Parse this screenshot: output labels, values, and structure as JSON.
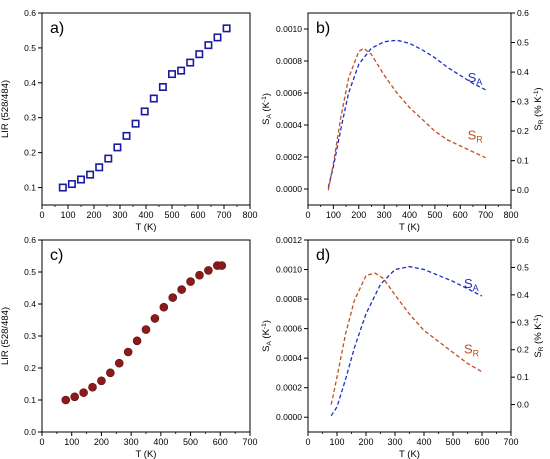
{
  "figure": {
    "colors": {
      "axis": "#000000",
      "blue": "#1f2fbf",
      "orange": "#c0501f",
      "marker_red": "#8b1a1a",
      "marker_blue": "#1a1aa0"
    }
  },
  "chart_data": [
    {
      "id": "a",
      "type": "scatter",
      "panel_label": "a)",
      "xlabel": "T (K)",
      "ylabel": "LIR (528/484)",
      "xlim": [
        0,
        800
      ],
      "ylim": [
        0.05,
        0.6
      ],
      "xticks": [
        "0",
        "100",
        "200",
        "300",
        "400",
        "500",
        "600",
        "700",
        "800"
      ],
      "yticks": [
        "0.1",
        "0.2",
        "0.3",
        "0.4",
        "0.5",
        "0.6"
      ],
      "marker": "hollow-square",
      "color": "#1a1aa0",
      "x": [
        80,
        115,
        150,
        185,
        220,
        255,
        290,
        325,
        360,
        395,
        430,
        465,
        500,
        535,
        570,
        605,
        640,
        675,
        710
      ],
      "y": [
        0.1,
        0.11,
        0.123,
        0.137,
        0.158,
        0.183,
        0.215,
        0.248,
        0.283,
        0.318,
        0.355,
        0.388,
        0.425,
        0.435,
        0.458,
        0.482,
        0.508,
        0.53,
        0.556
      ]
    },
    {
      "id": "b",
      "type": "line",
      "panel_label": "b)",
      "xlabel": "T (K)",
      "ylabel_left": "SA (K-1)",
      "ylabel_right": "SR (% K-1)",
      "xlim": [
        0,
        800
      ],
      "ylim_left": [
        -0.0001,
        0.0011
      ],
      "ylim_right": [
        -0.05,
        0.6
      ],
      "xticks": [
        "0",
        "100",
        "200",
        "300",
        "400",
        "500",
        "600",
        "700",
        "800"
      ],
      "yticks_left": [
        "0.0000",
        "0.0002",
        "0.0004",
        "0.0006",
        "0.0008",
        "0.0010"
      ],
      "yticks_right": [
        "0.0",
        "0.1",
        "0.2",
        "0.3",
        "0.4",
        "0.5",
        "0.6"
      ],
      "series": [
        {
          "name": "SA",
          "axis": "left",
          "color": "#1f2fbf",
          "x": [
            80,
            100,
            130,
            160,
            200,
            250,
            300,
            350,
            400,
            450,
            500,
            550,
            600,
            650,
            700
          ],
          "y": [
            1e-05,
            0.00014,
            0.00038,
            0.0006,
            0.00078,
            0.00088,
            0.00092,
            0.00093,
            0.00091,
            0.00087,
            0.00082,
            0.00076,
            0.00071,
            0.00066,
            0.00062
          ]
        },
        {
          "name": "SR",
          "axis": "right",
          "color": "#c0501f",
          "x": [
            80,
            100,
            130,
            160,
            200,
            220,
            250,
            300,
            350,
            400,
            450,
            500,
            550,
            600,
            650,
            700
          ],
          "y": [
            0.0,
            0.09,
            0.25,
            0.38,
            0.47,
            0.48,
            0.46,
            0.39,
            0.33,
            0.28,
            0.24,
            0.2,
            0.17,
            0.15,
            0.13,
            0.11
          ]
        }
      ],
      "annotations": [
        {
          "base": "S",
          "sub": "A",
          "color": "#1f2fbf"
        },
        {
          "base": "S",
          "sub": "R",
          "color": "#c0501f"
        }
      ]
    },
    {
      "id": "c",
      "type": "scatter",
      "panel_label": "c)",
      "xlabel": "T (K)",
      "ylabel": "LIR (528/484)",
      "xlim": [
        0,
        700
      ],
      "ylim": [
        0.0,
        0.6
      ],
      "xticks": [
        "0",
        "100",
        "200",
        "300",
        "400",
        "500",
        "600",
        "700"
      ],
      "yticks": [
        "0.0",
        "0.1",
        "0.2",
        "0.3",
        "0.4",
        "0.5",
        "0.6"
      ],
      "marker": "filled-circle",
      "color": "#8b1a1a",
      "x": [
        80,
        110,
        140,
        170,
        200,
        230,
        260,
        290,
        320,
        350,
        380,
        410,
        440,
        470,
        500,
        530,
        560,
        590,
        605
      ],
      "y": [
        0.1,
        0.11,
        0.123,
        0.14,
        0.16,
        0.185,
        0.215,
        0.25,
        0.285,
        0.32,
        0.355,
        0.39,
        0.42,
        0.445,
        0.47,
        0.49,
        0.505,
        0.52,
        0.52
      ]
    },
    {
      "id": "d",
      "type": "line",
      "panel_label": "d)",
      "xlabel": "T (K)",
      "ylabel_left": "SA (K-1)",
      "ylabel_right": "SR (% K-1)",
      "xlim": [
        0,
        700
      ],
      "ylim_left": [
        -0.0001,
        0.0012
      ],
      "ylim_right": [
        -0.1,
        0.6
      ],
      "xticks": [
        "0",
        "100",
        "200",
        "300",
        "400",
        "500",
        "600",
        "700"
      ],
      "yticks_left": [
        "0.0000",
        "0.0002",
        "0.0004",
        "0.0006",
        "0.0008",
        "0.0010",
        "0.0012"
      ],
      "yticks_right": [
        "0.0",
        "0.1",
        "0.2",
        "0.3",
        "0.4",
        "0.5",
        "0.6"
      ],
      "series": [
        {
          "name": "SA",
          "axis": "left",
          "color": "#1f2fbf",
          "x": [
            80,
            100,
            130,
            160,
            200,
            250,
            300,
            350,
            400,
            450,
            500,
            550,
            600
          ],
          "y": [
            1e-05,
            7e-05,
            0.00026,
            0.00047,
            0.0007,
            0.0009,
            0.001,
            0.00102,
            0.001,
            0.00096,
            0.00092,
            0.00087,
            0.00082
          ]
        },
        {
          "name": "SR",
          "axis": "right",
          "color": "#c0501f",
          "x": [
            80,
            100,
            130,
            160,
            200,
            230,
            260,
            300,
            350,
            400,
            450,
            500,
            550,
            600
          ],
          "y": [
            0.0,
            0.1,
            0.26,
            0.38,
            0.47,
            0.48,
            0.46,
            0.4,
            0.33,
            0.27,
            0.23,
            0.19,
            0.15,
            0.12
          ]
        }
      ],
      "annotations": [
        {
          "base": "S",
          "sub": "A",
          "color": "#1f2fbf"
        },
        {
          "base": "S",
          "sub": "R",
          "color": "#c0501f"
        }
      ]
    }
  ]
}
